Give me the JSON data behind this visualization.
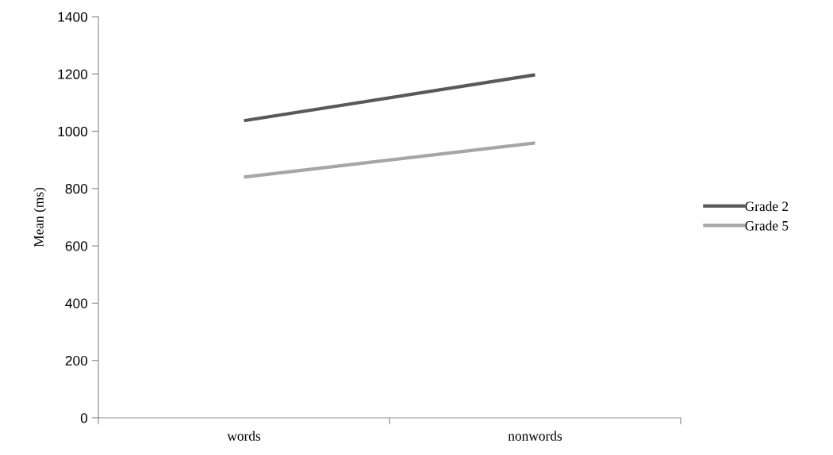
{
  "chart_data": {
    "type": "line",
    "ylabel": "Mean (ms)",
    "categories": [
      "words",
      "nonwords"
    ],
    "series": [
      {
        "name": "Grade 2",
        "color": "#595959",
        "values": [
          1037,
          1197
        ]
      },
      {
        "name": "Grade 5",
        "color": "#a6a6a6",
        "values": [
          840,
          959
        ]
      }
    ],
    "ylim": [
      0,
      1400
    ],
    "yticks": [
      0,
      200,
      400,
      600,
      800,
      1000,
      1200,
      1400
    ],
    "legend": "right",
    "grid": false,
    "marker": "none",
    "line_style": "solid"
  }
}
